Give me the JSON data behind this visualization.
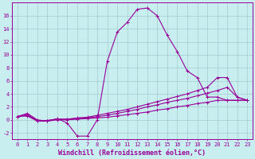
{
  "xlabel": "Windchill (Refroidissement éolien,°C)",
  "bg_color": "#c8eef0",
  "line_color": "#990099",
  "grid_color": "#a0ccd0",
  "x": [
    0,
    1,
    2,
    3,
    4,
    5,
    6,
    7,
    8,
    9,
    10,
    11,
    12,
    13,
    14,
    15,
    16,
    17,
    18,
    19,
    20,
    21,
    22,
    23
  ],
  "line1": [
    0.5,
    1.0,
    0.0,
    -0.2,
    0.2,
    -0.5,
    -2.5,
    -2.5,
    0.0,
    9.0,
    13.5,
    15.0,
    17.0,
    17.2,
    16.0,
    13.0,
    10.5,
    7.5,
    6.5,
    3.5,
    3.5,
    3.0,
    3.0,
    3.0
  ],
  "line2": [
    0.5,
    0.8,
    -0.1,
    -0.1,
    0.1,
    0.1,
    0.3,
    0.4,
    0.7,
    1.0,
    1.3,
    1.6,
    2.0,
    2.4,
    2.8,
    3.2,
    3.6,
    4.0,
    4.5,
    5.0,
    6.5,
    6.5,
    3.5,
    3.0
  ],
  "line3": [
    0.5,
    0.7,
    -0.1,
    -0.1,
    0.1,
    0.1,
    0.2,
    0.3,
    0.5,
    0.7,
    1.0,
    1.3,
    1.6,
    2.0,
    2.3,
    2.7,
    3.0,
    3.3,
    3.7,
    4.1,
    4.5,
    5.0,
    3.5,
    3.0
  ],
  "line4": [
    0.5,
    0.6,
    -0.2,
    -0.2,
    0.0,
    0.0,
    0.1,
    0.2,
    0.3,
    0.4,
    0.6,
    0.8,
    1.0,
    1.2,
    1.5,
    1.7,
    2.0,
    2.2,
    2.5,
    2.7,
    3.0,
    3.0,
    3.0,
    3.0
  ],
  "ylim": [
    -3,
    18
  ],
  "xlim": [
    -0.5,
    23.5
  ],
  "yticks": [
    -2,
    0,
    2,
    4,
    6,
    8,
    10,
    12,
    14,
    16
  ],
  "xticks": [
    0,
    1,
    2,
    3,
    4,
    5,
    6,
    7,
    8,
    9,
    10,
    11,
    12,
    13,
    14,
    15,
    16,
    17,
    18,
    19,
    20,
    21,
    22,
    23
  ],
  "tick_fontsize": 5,
  "xlabel_fontsize": 6
}
